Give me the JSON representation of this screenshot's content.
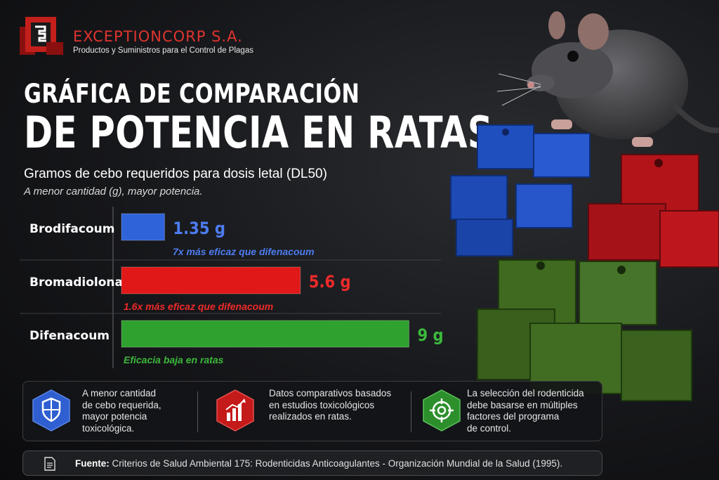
{
  "brand": {
    "name": "EXCEPTIONCORP S.A.",
    "tagline": "Productos y Suministros para el Control de Plagas"
  },
  "title": {
    "line1": "GRÁFICA DE COMPARACIÓN",
    "line2": "DE POTENCIA EN RATAS"
  },
  "subtitle": "Gramos de cebo requeridos para dosis letal (DL50)",
  "note": "A menor cantidad (g), mayor potencia.",
  "colors": {
    "blue": "#2f63d9",
    "red": "#e01818",
    "green": "#2ea12e",
    "brand_red": "#e0342f"
  },
  "chart_data": {
    "type": "bar",
    "orientation": "horizontal",
    "categories": [
      "Brodifacoum",
      "Bromadiolona",
      "Difenacoum"
    ],
    "values": [
      1.35,
      5.6,
      9
    ],
    "value_labels": [
      "1.35 g",
      "5.6 g",
      "9 g"
    ],
    "annotations": [
      "7x más eficaz que difenacoum",
      "1.6x más eficaz que difenacoum",
      "Eficacia baja en ratas"
    ],
    "bar_colors": [
      "#2f63d9",
      "#e01818",
      "#2ea12e"
    ],
    "unit": "g",
    "xlim": [
      0,
      9.5
    ],
    "grid": false,
    "legend": "none"
  },
  "info": [
    {
      "icon": "shield-icon",
      "text": [
        "A menor cantidad",
        "de cebo requerida,",
        "mayor potencia",
        "toxicológica."
      ]
    },
    {
      "icon": "bar-chart-icon",
      "text": [
        "Datos comparativos basados",
        "en estudios toxicológicos",
        "realizados en ratas."
      ]
    },
    {
      "icon": "target-icon",
      "text": [
        "La selección del rodenticida",
        "debe basarse en múltiples",
        "factores del programa",
        "de control."
      ]
    }
  ],
  "footer": {
    "label": "Fuente:",
    "text": "Criterios de Salud Ambiental 175: Rodenticidas Anticoagulantes - Organización Mundial de la Salud (1995)."
  }
}
